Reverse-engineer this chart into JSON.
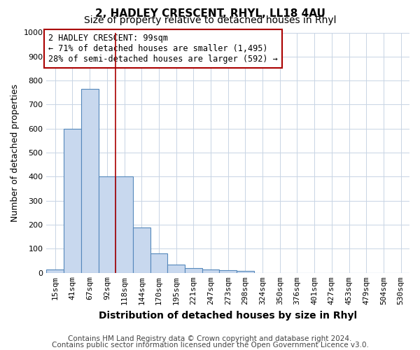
{
  "title": "2, HADLEY CRESCENT, RHYL, LL18 4AU",
  "subtitle": "Size of property relative to detached houses in Rhyl",
  "xlabel": "Distribution of detached houses by size in Rhyl",
  "ylabel": "Number of detached properties",
  "footnote1": "Contains HM Land Registry data © Crown copyright and database right 2024.",
  "footnote2": "Contains public sector information licensed under the Open Government Licence v3.0.",
  "bin_labels": [
    "15sqm",
    "41sqm",
    "67sqm",
    "92sqm",
    "118sqm",
    "144sqm",
    "170sqm",
    "195sqm",
    "221sqm",
    "247sqm",
    "273sqm",
    "298sqm",
    "324sqm",
    "350sqm",
    "376sqm",
    "401sqm",
    "427sqm",
    "453sqm",
    "479sqm",
    "504sqm",
    "530sqm"
  ],
  "bar_values": [
    15,
    600,
    765,
    400,
    400,
    190,
    80,
    35,
    20,
    15,
    10,
    8,
    0,
    0,
    0,
    0,
    0,
    0,
    0,
    0,
    0
  ],
  "bar_color": "#c8d8ee",
  "bar_edgecolor": "#5588bb",
  "grid_color": "#c8d4e4",
  "property_line_x": 3.5,
  "property_line_color": "#aa0000",
  "annotation_text": "2 HADLEY CRESCENT: 99sqm\n← 71% of detached houses are smaller (1,495)\n28% of semi-detached houses are larger (592) →",
  "annotation_box_edgecolor": "#aa0000",
  "annotation_fontsize": 8.5,
  "ylim": [
    0,
    1000
  ],
  "yticks": [
    0,
    100,
    200,
    300,
    400,
    500,
    600,
    700,
    800,
    900,
    1000
  ],
  "title_fontsize": 11,
  "subtitle_fontsize": 10,
  "xlabel_fontsize": 10,
  "ylabel_fontsize": 9,
  "tick_fontsize": 8,
  "footnote_fontsize": 7.5,
  "background_color": "#ffffff"
}
